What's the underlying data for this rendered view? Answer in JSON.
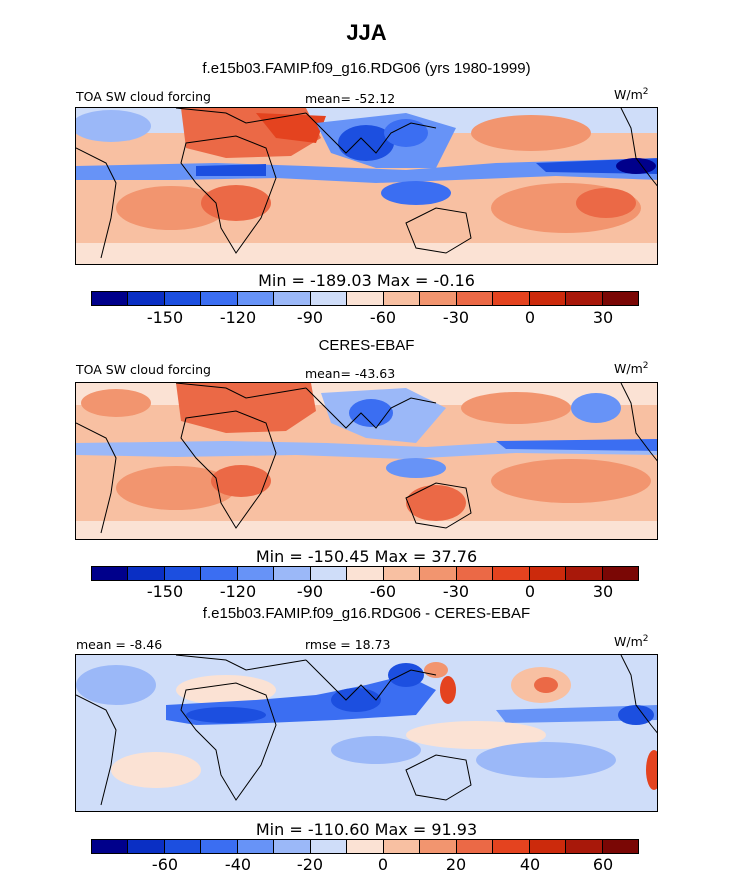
{
  "title": "JJA",
  "colors": [
    "#00008b",
    "#0a2fc4",
    "#1c4fe0",
    "#3b6ef2",
    "#6793f7",
    "#9bb8f8",
    "#cfddf9",
    "#fbe2d4",
    "#f8c0a2",
    "#f2956f",
    "#eb6946",
    "#e4431f",
    "#cc2a0c",
    "#a8180a",
    "#7a0705"
  ],
  "panels": [
    {
      "title": "f.e15b03.FAMIP.f09_g16.RDG06 (yrs 1980-1999)",
      "left_label": "TOA SW cloud forcing",
      "mean_label": "mean=  -52.12",
      "units": "W/m",
      "units_sup": "2",
      "minmax": "Min = -189.03 Max =  -0.16",
      "ticks": [
        "-150",
        "-120",
        "-90",
        "-60",
        "-30",
        "0",
        "30"
      ]
    },
    {
      "title": "CERES-EBAF",
      "left_label": "TOA SW cloud forcing",
      "mean_label": "mean= -43.63",
      "units": "W/m",
      "units_sup": "2",
      "minmax": "Min = -150.45 Max =  37.76",
      "ticks": [
        "-150",
        "-120",
        "-90",
        "-60",
        "-30",
        "0",
        "30"
      ]
    },
    {
      "title": "f.e15b03.FAMIP.f09_g16.RDG06 - CERES-EBAF",
      "left_label": "mean =  -8.46",
      "mean_label": "rmse =  18.73",
      "units": "W/m",
      "units_sup": "2",
      "minmax": "Min = -110.60 Max =  91.93",
      "ticks": [
        "-60",
        "-40",
        "-20",
        "0",
        "20",
        "40",
        "60"
      ]
    }
  ]
}
